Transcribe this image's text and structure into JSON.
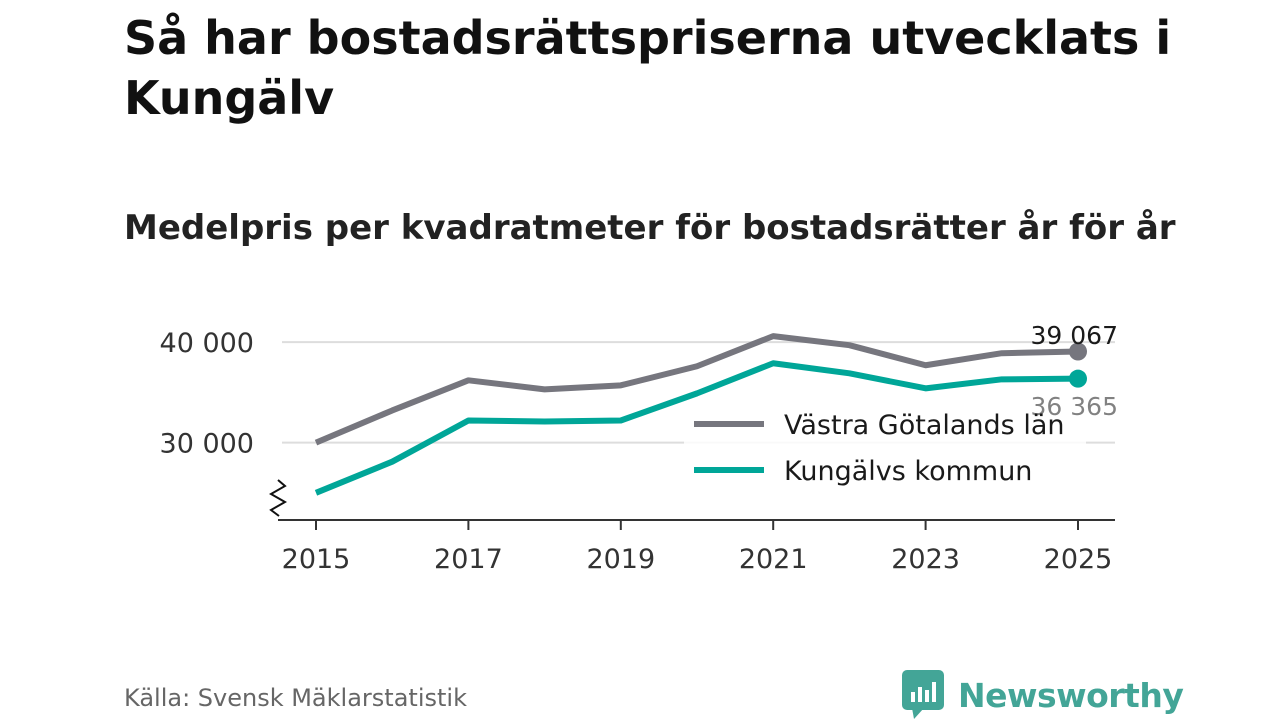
{
  "title": "Så har bostadsrättspriserna utvecklats i Kungälv",
  "subtitle": "Medelpris per kvadratmeter för bostadsrätter år för år",
  "source": "Källa: Svensk Mäklarstatistik",
  "brand": "Newsworthy",
  "colors": {
    "grey_series": "#76767e",
    "teal_series": "#00a698",
    "brand": "#43a597",
    "grid": "#dddddd",
    "axis": "#333333"
  },
  "chart_data": {
    "type": "line",
    "x": [
      2015,
      2016,
      2017,
      2018,
      2019,
      2020,
      2021,
      2022,
      2023,
      2024,
      2025
    ],
    "x_ticks": [
      2015,
      2017,
      2019,
      2021,
      2023,
      2025
    ],
    "x_tick_labels": [
      "2015",
      "2017",
      "2019",
      "2021",
      "2023",
      "2025"
    ],
    "xlim": [
      2015,
      2025
    ],
    "y_ticks": [
      30000,
      40000
    ],
    "y_tick_labels": [
      "30 000",
      "40 000"
    ],
    "ylim": [
      21000,
      43500
    ],
    "y_axis_break": true,
    "grid": true,
    "legend_position": "right",
    "series": [
      {
        "name": "Västra Götalands län",
        "color_key": "grey_series",
        "values": [
          30000,
          33200,
          36200,
          35300,
          35700,
          37600,
          40600,
          39700,
          37700,
          38900,
          39067
        ],
        "end_label": "39 067"
      },
      {
        "name": "Kungälvs kommun",
        "color_key": "teal_series",
        "values": [
          25000,
          28100,
          32200,
          32100,
          32200,
          34900,
          37900,
          36900,
          35400,
          36300,
          36365
        ],
        "end_label": "36 365"
      }
    ],
    "title": "Medelpris per kvadratmeter för bostadsrätter år för år",
    "xlabel": "",
    "ylabel": ""
  }
}
